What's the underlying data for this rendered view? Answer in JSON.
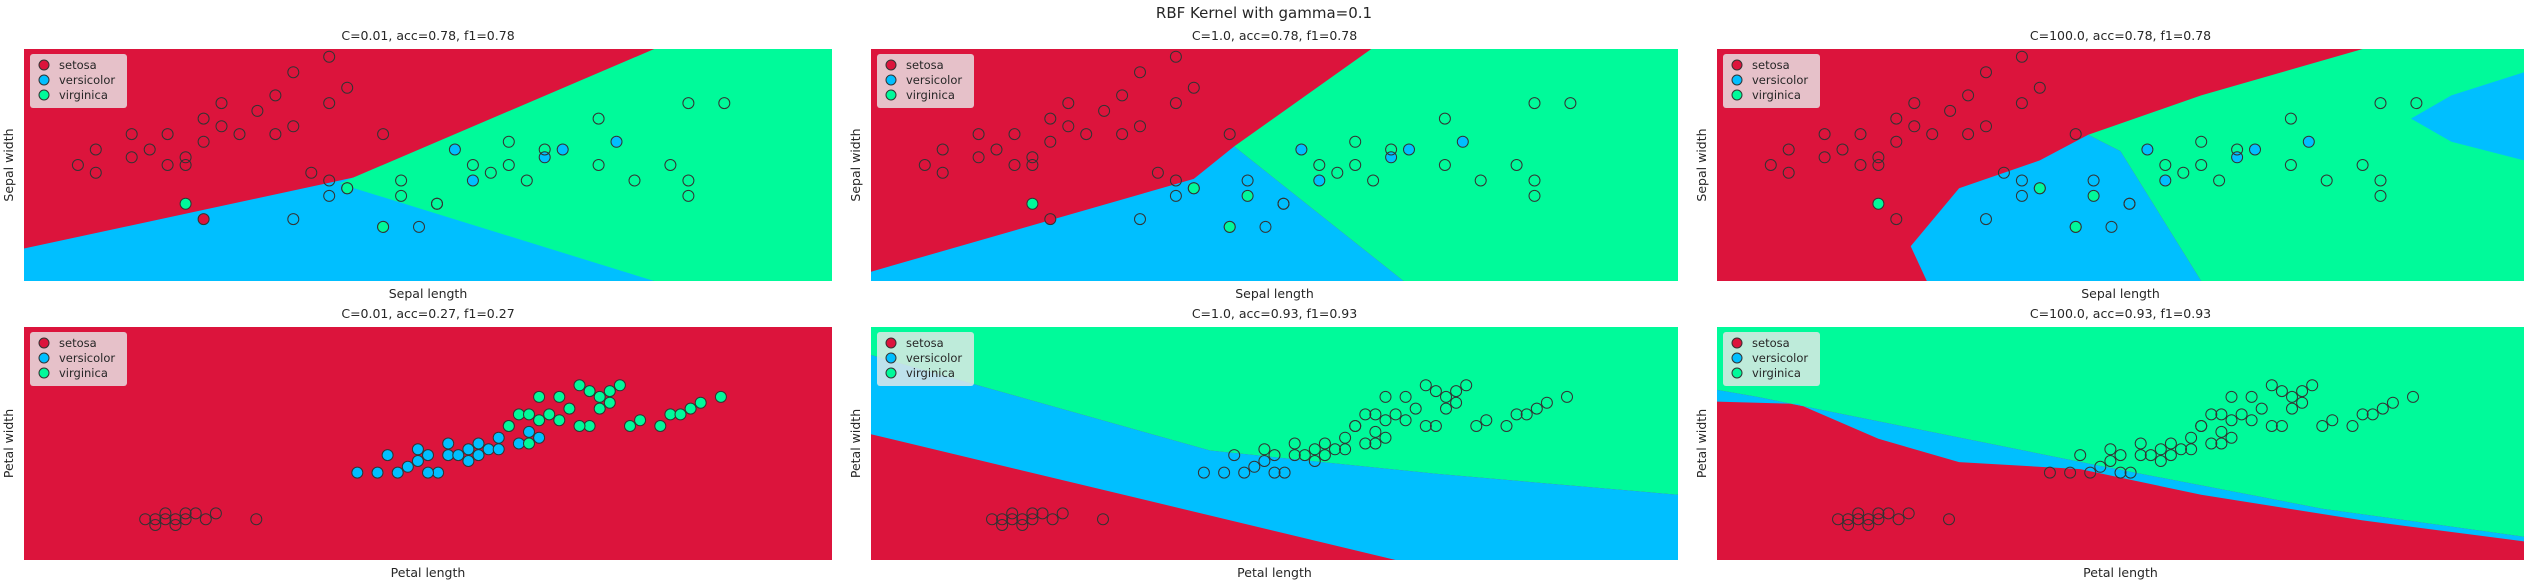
{
  "figure": {
    "suptitle": "RBF Kernel with gamma=0.1",
    "legend_entries": [
      "setosa",
      "versicolor",
      "virginica"
    ],
    "colors": {
      "setosa": "#dc143c",
      "versicolor": "#00bfff",
      "virginica": "#00fa9a"
    }
  },
  "chart_data": [
    {
      "type": "scatter",
      "title": "C=0.01, acc=0.78, f1=0.78",
      "xlabel": "Sepal length",
      "ylabel": "Sepal width",
      "xlim": [
        4.0,
        8.5
      ],
      "ylim": [
        1.5,
        4.5
      ],
      "grid": false,
      "legend": "top-left",
      "points": [
        {
          "x": 4.3,
          "y": 3.0,
          "c": "none"
        },
        {
          "x": 4.4,
          "y": 3.2,
          "c": "none"
        },
        {
          "x": 4.4,
          "y": 2.9,
          "c": "none"
        },
        {
          "x": 4.6,
          "y": 3.1,
          "c": "none"
        },
        {
          "x": 4.6,
          "y": 3.4,
          "c": "none"
        },
        {
          "x": 4.7,
          "y": 3.2,
          "c": "none"
        },
        {
          "x": 4.8,
          "y": 3.0,
          "c": "none"
        },
        {
          "x": 4.8,
          "y": 3.4,
          "c": "none"
        },
        {
          "x": 4.9,
          "y": 3.0,
          "c": "none"
        },
        {
          "x": 4.9,
          "y": 3.1,
          "c": "none"
        },
        {
          "x": 5.0,
          "y": 3.3,
          "c": "none"
        },
        {
          "x": 5.0,
          "y": 3.6,
          "c": "none"
        },
        {
          "x": 5.1,
          "y": 3.5,
          "c": "none"
        },
        {
          "x": 5.1,
          "y": 3.8,
          "c": "none"
        },
        {
          "x": 5.2,
          "y": 3.4,
          "c": "none"
        },
        {
          "x": 5.3,
          "y": 3.7,
          "c": "none"
        },
        {
          "x": 5.4,
          "y": 3.9,
          "c": "none"
        },
        {
          "x": 5.4,
          "y": 3.4,
          "c": "none"
        },
        {
          "x": 5.5,
          "y": 3.5,
          "c": "none"
        },
        {
          "x": 5.5,
          "y": 4.2,
          "c": "none"
        },
        {
          "x": 5.7,
          "y": 3.8,
          "c": "none"
        },
        {
          "x": 5.7,
          "y": 4.4,
          "c": "none"
        },
        {
          "x": 5.8,
          "y": 4.0,
          "c": "none"
        },
        {
          "x": 5.0,
          "y": 2.3,
          "c": "setosa"
        },
        {
          "x": 5.5,
          "y": 2.3,
          "c": "none"
        },
        {
          "x": 5.6,
          "y": 2.9,
          "c": "none"
        },
        {
          "x": 5.7,
          "y": 2.6,
          "c": "none"
        },
        {
          "x": 5.7,
          "y": 2.8,
          "c": "none"
        },
        {
          "x": 5.8,
          "y": 2.7,
          "c": "none"
        },
        {
          "x": 6.0,
          "y": 2.2,
          "c": "none"
        },
        {
          "x": 6.0,
          "y": 3.4,
          "c": "none"
        },
        {
          "x": 6.1,
          "y": 2.8,
          "c": "none"
        },
        {
          "x": 6.2,
          "y": 2.2,
          "c": "none"
        },
        {
          "x": 6.3,
          "y": 2.5,
          "c": "none"
        },
        {
          "x": 6.6,
          "y": 2.9,
          "c": "none"
        },
        {
          "x": 6.7,
          "y": 3.0,
          "c": "none"
        },
        {
          "x": 6.8,
          "y": 2.8,
          "c": "none"
        },
        {
          "x": 6.4,
          "y": 3.2,
          "c": "versicolor"
        },
        {
          "x": 6.9,
          "y": 3.1,
          "c": "versicolor"
        },
        {
          "x": 6.5,
          "y": 2.8,
          "c": "versicolor"
        },
        {
          "x": 7.0,
          "y": 3.2,
          "c": "versicolor"
        },
        {
          "x": 7.3,
          "y": 3.3,
          "c": "versicolor"
        },
        {
          "x": 4.9,
          "y": 2.5,
          "c": "virginica"
        },
        {
          "x": 5.8,
          "y": 2.7,
          "c": "virginica"
        },
        {
          "x": 6.0,
          "y": 2.2,
          "c": "virginica"
        },
        {
          "x": 6.1,
          "y": 2.6,
          "c": "virginica"
        },
        {
          "x": 6.3,
          "y": 2.5,
          "c": "none"
        },
        {
          "x": 6.5,
          "y": 3.0,
          "c": "none"
        },
        {
          "x": 6.7,
          "y": 3.3,
          "c": "none"
        },
        {
          "x": 6.9,
          "y": 3.2,
          "c": "none"
        },
        {
          "x": 7.2,
          "y": 3.6,
          "c": "none"
        },
        {
          "x": 7.2,
          "y": 3.0,
          "c": "none"
        },
        {
          "x": 7.7,
          "y": 3.8,
          "c": "none"
        },
        {
          "x": 7.7,
          "y": 2.6,
          "c": "none"
        },
        {
          "x": 7.9,
          "y": 3.8,
          "c": "none"
        },
        {
          "x": 7.6,
          "y": 3.0,
          "c": "none"
        },
        {
          "x": 7.7,
          "y": 2.8,
          "c": "none"
        },
        {
          "x": 7.4,
          "y": 2.8,
          "c": "none"
        }
      ]
    },
    {
      "type": "scatter",
      "title": "C=1.0, acc=0.78, f1=0.78",
      "xlabel": "Sepal length",
      "ylabel": "Sepal width",
      "xlim": [
        4.0,
        8.5
      ],
      "ylim": [
        1.5,
        4.5
      ],
      "grid": false,
      "legend": "top-left",
      "points": "same-as-first"
    },
    {
      "type": "scatter",
      "title": "C=100.0, acc=0.78, f1=0.78",
      "xlabel": "Sepal length",
      "ylabel": "Sepal width",
      "xlim": [
        4.0,
        8.5
      ],
      "ylim": [
        1.5,
        4.5
      ],
      "grid": false,
      "legend": "top-left",
      "points": "same-as-first"
    },
    {
      "type": "scatter",
      "title": "C=0.01, acc=0.27, f1=0.27",
      "xlabel": "Petal length",
      "ylabel": "Petal width",
      "xlim": [
        0.0,
        8.0
      ],
      "ylim": [
        -0.5,
        3.5
      ],
      "grid": false,
      "legend": "top-left",
      "points": [
        {
          "x": 1.4,
          "y": 0.2,
          "c": "none"
        },
        {
          "x": 1.3,
          "y": 0.2,
          "c": "none"
        },
        {
          "x": 1.5,
          "y": 0.2,
          "c": "none"
        },
        {
          "x": 1.4,
          "y": 0.3,
          "c": "none"
        },
        {
          "x": 1.6,
          "y": 0.2,
          "c": "none"
        },
        {
          "x": 1.7,
          "y": 0.3,
          "c": "none"
        },
        {
          "x": 1.5,
          "y": 0.1,
          "c": "none"
        },
        {
          "x": 1.6,
          "y": 0.3,
          "c": "none"
        },
        {
          "x": 1.2,
          "y": 0.2,
          "c": "none"
        },
        {
          "x": 1.9,
          "y": 0.3,
          "c": "none"
        },
        {
          "x": 1.3,
          "y": 0.1,
          "c": "none"
        },
        {
          "x": 1.8,
          "y": 0.2,
          "c": "none"
        },
        {
          "x": 2.3,
          "y": 0.2,
          "c": "none"
        },
        {
          "x": 3.3,
          "y": 1.0,
          "c": "versicolor"
        },
        {
          "x": 3.5,
          "y": 1.0,
          "c": "versicolor"
        },
        {
          "x": 3.7,
          "y": 1.0,
          "c": "versicolor"
        },
        {
          "x": 3.8,
          "y": 1.1,
          "c": "versicolor"
        },
        {
          "x": 3.9,
          "y": 1.2,
          "c": "versicolor"
        },
        {
          "x": 3.6,
          "y": 1.3,
          "c": "versicolor"
        },
        {
          "x": 4.0,
          "y": 1.3,
          "c": "versicolor"
        },
        {
          "x": 4.1,
          "y": 1.0,
          "c": "versicolor"
        },
        {
          "x": 4.2,
          "y": 1.3,
          "c": "versicolor"
        },
        {
          "x": 4.3,
          "y": 1.3,
          "c": "versicolor"
        },
        {
          "x": 4.4,
          "y": 1.4,
          "c": "versicolor"
        },
        {
          "x": 4.5,
          "y": 1.5,
          "c": "versicolor"
        },
        {
          "x": 4.6,
          "y": 1.4,
          "c": "versicolor"
        },
        {
          "x": 4.7,
          "y": 1.4,
          "c": "versicolor"
        },
        {
          "x": 4.8,
          "y": 1.8,
          "c": "versicolor"
        },
        {
          "x": 4.9,
          "y": 1.5,
          "c": "versicolor"
        },
        {
          "x": 5.0,
          "y": 1.7,
          "c": "versicolor"
        },
        {
          "x": 5.1,
          "y": 1.6,
          "c": "versicolor"
        },
        {
          "x": 4.0,
          "y": 1.0,
          "c": "versicolor"
        },
        {
          "x": 4.4,
          "y": 1.2,
          "c": "versicolor"
        },
        {
          "x": 4.2,
          "y": 1.5,
          "c": "versicolor"
        },
        {
          "x": 4.5,
          "y": 1.3,
          "c": "versicolor"
        },
        {
          "x": 3.9,
          "y": 1.4,
          "c": "versicolor"
        },
        {
          "x": 4.7,
          "y": 1.6,
          "c": "versicolor"
        },
        {
          "x": 4.8,
          "y": 1.8,
          "c": "virginica"
        },
        {
          "x": 4.9,
          "y": 2.0,
          "c": "virginica"
        },
        {
          "x": 5.0,
          "y": 2.0,
          "c": "virginica"
        },
        {
          "x": 5.1,
          "y": 2.3,
          "c": "virginica"
        },
        {
          "x": 5.2,
          "y": 2.0,
          "c": "virginica"
        },
        {
          "x": 5.3,
          "y": 2.3,
          "c": "virginica"
        },
        {
          "x": 5.4,
          "y": 2.1,
          "c": "virginica"
        },
        {
          "x": 5.5,
          "y": 2.5,
          "c": "virginica"
        },
        {
          "x": 5.6,
          "y": 2.4,
          "c": "virginica"
        },
        {
          "x": 5.7,
          "y": 2.3,
          "c": "virginica"
        },
        {
          "x": 5.8,
          "y": 2.2,
          "c": "virginica"
        },
        {
          "x": 5.9,
          "y": 2.5,
          "c": "virginica"
        },
        {
          "x": 6.0,
          "y": 1.8,
          "c": "virginica"
        },
        {
          "x": 6.1,
          "y": 1.9,
          "c": "virginica"
        },
        {
          "x": 6.3,
          "y": 1.8,
          "c": "virginica"
        },
        {
          "x": 6.6,
          "y": 2.1,
          "c": "virginica"
        },
        {
          "x": 6.7,
          "y": 2.2,
          "c": "virginica"
        },
        {
          "x": 6.9,
          "y": 2.3,
          "c": "virginica"
        },
        {
          "x": 5.6,
          "y": 1.8,
          "c": "virginica"
        },
        {
          "x": 5.1,
          "y": 1.9,
          "c": "virginica"
        },
        {
          "x": 5.8,
          "y": 2.4,
          "c": "virginica"
        },
        {
          "x": 5.3,
          "y": 1.9,
          "c": "virginica"
        },
        {
          "x": 6.4,
          "y": 2.0,
          "c": "virginica"
        },
        {
          "x": 6.5,
          "y": 2.0,
          "c": "virginica"
        },
        {
          "x": 5.5,
          "y": 1.8,
          "c": "virginica"
        },
        {
          "x": 5.0,
          "y": 1.5,
          "c": "virginica"
        },
        {
          "x": 5.7,
          "y": 2.1,
          "c": "virginica"
        }
      ]
    },
    {
      "type": "scatter",
      "title": "C=1.0, acc=0.93, f1=0.93",
      "xlabel": "Petal length",
      "ylabel": "Petal width",
      "xlim": [
        0.0,
        8.0
      ],
      "ylim": [
        -0.5,
        3.5
      ],
      "grid": false,
      "legend": "top-left",
      "points": "same-as-fourth-unfilled"
    },
    {
      "type": "scatter",
      "title": "C=100.0, acc=0.93, f1=0.93",
      "xlabel": "Petal length",
      "ylabel": "Petal width",
      "xlim": [
        0.0,
        8.0
      ],
      "ylim": [
        -0.5,
        3.5
      ],
      "grid": false,
      "legend": "top-left",
      "points": "same-as-fourth-unfilled"
    }
  ]
}
